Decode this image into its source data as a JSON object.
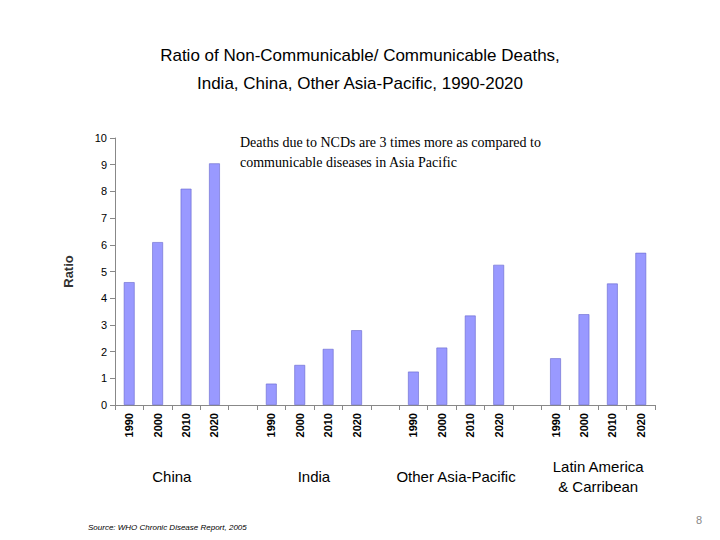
{
  "chart_data": {
    "type": "bar",
    "title": "Ratio of Non-Communicable/ Communicable Deaths,\nIndia, China, Other Asia-Pacific, 1990-2020",
    "annotation": "Deaths due to NCDs are 3 times more as compared to\ncommunicable diseases in Asia Pacific",
    "y_label": "Ratio",
    "source": "Source: WHO Chronic Disease Report, 2005",
    "page_number": "8",
    "categories": [
      "1990",
      "2000",
      "2010",
      "2020",
      null,
      "1990",
      "2000",
      "2010",
      "2020",
      null,
      "1990",
      "2000",
      "2010",
      "2020",
      null,
      "1990",
      "2000",
      "2010",
      "2020"
    ],
    "groups": [
      "China",
      "India",
      "Other Asia-Pacific",
      "Latin America\n& Carribean"
    ],
    "values": [
      4.6,
      6.1,
      8.1,
      9.05,
      null,
      0.8,
      1.5,
      2.1,
      2.8,
      null,
      1.25,
      2.15,
      3.35,
      5.25,
      null,
      1.75,
      3.4,
      4.55,
      5.7
    ],
    "color": "#9999ff",
    "ylim": [
      0,
      10
    ],
    "yticks": [
      0,
      1,
      2,
      3,
      4,
      5,
      6,
      7,
      8,
      9,
      10
    ],
    "grid": false
  }
}
